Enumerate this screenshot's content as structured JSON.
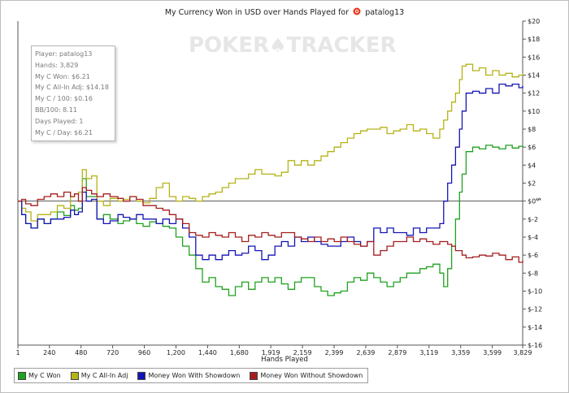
{
  "player_name": "patalog13",
  "info_box": {
    "lines": [
      "Player: patalog13",
      "Hands: 3,829",
      "My C Won: $6.21",
      "My C All-In Adj: $14.18",
      "My C / 100: $0.16",
      "BB/100: 8.11",
      "Days Played: 1",
      "My C / Day: $6.21"
    ]
  },
  "watermark": {
    "left": "POKER",
    "right": "TRACKER"
  },
  "chart_data": {
    "type": "line",
    "title": "My Currency Won in USD over Hands Played for",
    "xlabel": "Hands Played",
    "ylabel": "$",
    "xlim": [
      1,
      3829
    ],
    "ylim": [
      -16,
      20
    ],
    "x_ticks": [
      1,
      240,
      480,
      720,
      960,
      1200,
      1440,
      1680,
      1919,
      2159,
      2399,
      2639,
      2879,
      3119,
      3359,
      3599,
      3829
    ],
    "x_tick_labels": [
      "1",
      "240",
      "480",
      "720",
      "960",
      "1,200",
      "1,440",
      "1,680",
      "1,919",
      "2,159",
      "2,399",
      "2,639",
      "2,879",
      "3,119",
      "3,359",
      "3,599",
      "3,829"
    ],
    "y_ticks": [
      -16,
      -14,
      -12,
      -10,
      -8,
      -6,
      -4,
      -2,
      0,
      2,
      4,
      6,
      8,
      10,
      12,
      14,
      16,
      18,
      20
    ],
    "y_tick_labels": [
      "$-16",
      "$-14",
      "$-12",
      "$-10",
      "$-8",
      "$-6",
      "$-4",
      "$-2",
      "$0",
      "$2",
      "$4",
      "$6",
      "$8",
      "$10",
      "$12",
      "$14",
      "$16",
      "$18",
      "$20"
    ],
    "grid": false,
    "zero_line": true,
    "legend_position": "bottom-left",
    "series": [
      {
        "name": "My C Won",
        "color": "#1fa21f",
        "x": [
          1,
          30,
          60,
          100,
          150,
          200,
          250,
          300,
          350,
          400,
          430,
          460,
          490,
          520,
          560,
          600,
          650,
          700,
          760,
          800,
          850,
          900,
          950,
          1000,
          1050,
          1100,
          1150,
          1200,
          1250,
          1300,
          1350,
          1400,
          1450,
          1500,
          1550,
          1600,
          1650,
          1700,
          1750,
          1800,
          1850,
          1900,
          1950,
          2000,
          2050,
          2100,
          2150,
          2200,
          2250,
          2300,
          2350,
          2400,
          2450,
          2500,
          2550,
          2600,
          2650,
          2700,
          2750,
          2800,
          2850,
          2900,
          2950,
          3000,
          3050,
          3100,
          3150,
          3200,
          3230,
          3260,
          3290,
          3320,
          3350,
          3370,
          3400,
          3450,
          3500,
          3550,
          3600,
          3650,
          3700,
          3750,
          3800,
          3829
        ],
        "y": [
          0.0,
          -1.5,
          -2.5,
          -3.0,
          -2.0,
          -2.5,
          -2.0,
          -1.2,
          -1.6,
          -0.5,
          -1.0,
          -0.8,
          2.5,
          0.5,
          0.5,
          -2.0,
          -1.5,
          -2.0,
          -2.5,
          -2.2,
          -2.0,
          -2.5,
          -2.8,
          -2.3,
          -2.5,
          -2.8,
          -3.0,
          -4.0,
          -5.0,
          -6.0,
          -7.5,
          -9.0,
          -8.5,
          -9.5,
          -9.8,
          -10.5,
          -9.5,
          -9.0,
          -9.8,
          -9.0,
          -8.5,
          -9.0,
          -8.5,
          -9.2,
          -9.8,
          -9.0,
          -8.5,
          -8.5,
          -9.5,
          -10.0,
          -10.5,
          -10.2,
          -10.0,
          -9.0,
          -8.5,
          -8.8,
          -8.0,
          -8.5,
          -9.0,
          -9.5,
          -9.0,
          -8.5,
          -8.0,
          -8.0,
          -7.5,
          -7.3,
          -7.0,
          -8.0,
          -9.5,
          -7.5,
          -5.0,
          -2.0,
          1.0,
          3.0,
          5.5,
          6.0,
          5.8,
          6.2,
          6.0,
          5.8,
          6.2,
          5.9,
          6.1,
          6.2
        ]
      },
      {
        "name": "My C All-In Adj",
        "color": "#b5b216",
        "x": [
          1,
          30,
          60,
          100,
          150,
          200,
          250,
          300,
          350,
          400,
          430,
          460,
          490,
          520,
          560,
          600,
          650,
          700,
          760,
          800,
          850,
          900,
          950,
          1000,
          1050,
          1100,
          1150,
          1200,
          1250,
          1300,
          1350,
          1400,
          1450,
          1500,
          1550,
          1600,
          1650,
          1700,
          1750,
          1800,
          1850,
          1900,
          1950,
          2000,
          2050,
          2100,
          2150,
          2200,
          2250,
          2300,
          2350,
          2400,
          2450,
          2500,
          2550,
          2600,
          2650,
          2700,
          2750,
          2800,
          2850,
          2900,
          2950,
          3000,
          3050,
          3100,
          3150,
          3200,
          3230,
          3260,
          3290,
          3320,
          3350,
          3370,
          3400,
          3450,
          3500,
          3550,
          3600,
          3650,
          3700,
          3750,
          3800,
          3829
        ],
        "y": [
          0.0,
          -0.8,
          -1.2,
          -2.2,
          -1.5,
          -1.5,
          -1.2,
          -0.5,
          -0.8,
          0.5,
          0.8,
          1.0,
          3.5,
          2.5,
          2.8,
          0.0,
          -0.5,
          0.3,
          0.0,
          0.2,
          0.5,
          0.0,
          -0.2,
          0.3,
          1.5,
          2.0,
          0.5,
          0.0,
          0.5,
          0.3,
          0.0,
          0.5,
          0.8,
          1.0,
          1.5,
          2.0,
          2.5,
          2.5,
          3.0,
          3.5,
          3.0,
          3.0,
          2.8,
          3.2,
          4.5,
          4.0,
          4.5,
          4.0,
          4.5,
          5.0,
          5.5,
          6.0,
          6.5,
          7.0,
          7.5,
          7.8,
          8.0,
          8.0,
          8.2,
          7.5,
          7.8,
          8.0,
          8.5,
          7.8,
          8.0,
          7.5,
          7.0,
          8.0,
          9.0,
          10.0,
          11.0,
          12.0,
          13.5,
          15.0,
          15.2,
          14.5,
          14.8,
          14.0,
          14.5,
          14.0,
          14.2,
          13.8,
          14.0,
          14.18
        ]
      },
      {
        "name": "Money Won With Showdown",
        "color": "#1515b5",
        "x": [
          1,
          30,
          60,
          100,
          150,
          200,
          250,
          300,
          350,
          400,
          430,
          460,
          490,
          520,
          560,
          600,
          650,
          700,
          760,
          800,
          850,
          900,
          950,
          1000,
          1050,
          1100,
          1150,
          1200,
          1250,
          1300,
          1350,
          1400,
          1450,
          1500,
          1550,
          1600,
          1650,
          1700,
          1750,
          1800,
          1850,
          1900,
          1950,
          2000,
          2050,
          2100,
          2150,
          2200,
          2250,
          2300,
          2350,
          2400,
          2450,
          2500,
          2550,
          2600,
          2650,
          2700,
          2750,
          2800,
          2850,
          2900,
          2950,
          3000,
          3050,
          3100,
          3150,
          3200,
          3230,
          3260,
          3290,
          3320,
          3350,
          3370,
          3400,
          3450,
          3500,
          3550,
          3600,
          3650,
          3700,
          3750,
          3800,
          3829
        ],
        "y": [
          0.0,
          -1.5,
          -2.5,
          -3.0,
          -2.0,
          -2.5,
          -2.0,
          -2.0,
          -1.8,
          -1.0,
          -1.5,
          -1.2,
          1.0,
          0.0,
          0.2,
          -2.0,
          -2.5,
          -2.2,
          -1.5,
          -1.8,
          -2.0,
          -1.5,
          -2.0,
          -2.0,
          -2.5,
          -2.0,
          -2.5,
          -2.0,
          -3.0,
          -4.0,
          -6.0,
          -6.5,
          -6.0,
          -6.5,
          -6.0,
          -5.5,
          -6.0,
          -5.8,
          -5.0,
          -5.5,
          -6.5,
          -6.0,
          -5.0,
          -4.5,
          -5.0,
          -4.0,
          -4.5,
          -4.0,
          -4.5,
          -4.8,
          -5.0,
          -5.0,
          -4.5,
          -4.0,
          -4.5,
          -5.0,
          -4.5,
          -3.0,
          -3.5,
          -3.0,
          -3.5,
          -3.5,
          -3.8,
          -3.0,
          -3.5,
          -3.0,
          -3.0,
          -2.5,
          0.0,
          2.0,
          4.0,
          6.0,
          8.0,
          10.0,
          12.0,
          12.2,
          12.0,
          12.5,
          12.0,
          13.0,
          12.8,
          13.0,
          12.6,
          12.8
        ]
      },
      {
        "name": "Money Won Without Showdown",
        "color": "#a51d1d",
        "x": [
          1,
          30,
          60,
          100,
          150,
          200,
          250,
          300,
          350,
          400,
          430,
          460,
          490,
          520,
          560,
          600,
          650,
          700,
          760,
          800,
          850,
          900,
          950,
          1000,
          1050,
          1100,
          1150,
          1200,
          1250,
          1300,
          1350,
          1400,
          1450,
          1500,
          1550,
          1600,
          1650,
          1700,
          1750,
          1800,
          1850,
          1900,
          1950,
          2000,
          2050,
          2100,
          2150,
          2200,
          2250,
          2300,
          2350,
          2400,
          2450,
          2500,
          2550,
          2600,
          2650,
          2700,
          2750,
          2800,
          2850,
          2900,
          2950,
          3000,
          3050,
          3100,
          3150,
          3200,
          3230,
          3260,
          3290,
          3320,
          3350,
          3370,
          3400,
          3450,
          3500,
          3550,
          3600,
          3650,
          3700,
          3750,
          3800,
          3829
        ],
        "y": [
          0.0,
          0.2,
          -0.3,
          -0.5,
          0.2,
          0.5,
          0.8,
          0.5,
          1.0,
          0.5,
          0.8,
          0.0,
          1.5,
          1.2,
          0.8,
          0.5,
          0.8,
          0.5,
          0.3,
          0.0,
          0.5,
          0.2,
          -0.5,
          -0.5,
          -0.8,
          -1.0,
          -1.5,
          -2.0,
          -2.5,
          -3.5,
          -3.8,
          -4.0,
          -3.5,
          -3.8,
          -4.0,
          -3.5,
          -4.0,
          -4.5,
          -3.8,
          -4.0,
          -3.5,
          -3.8,
          -4.0,
          -3.5,
          -3.5,
          -4.0,
          -4.2,
          -4.5,
          -4.0,
          -4.5,
          -4.2,
          -4.5,
          -4.0,
          -4.5,
          -4.8,
          -5.0,
          -4.5,
          -6.0,
          -5.5,
          -5.0,
          -4.5,
          -4.5,
          -4.0,
          -4.5,
          -4.2,
          -4.5,
          -4.8,
          -4.5,
          -4.5,
          -4.8,
          -5.0,
          -5.5,
          -5.5,
          -6.0,
          -6.3,
          -6.2,
          -6.0,
          -6.1,
          -5.8,
          -6.0,
          -6.5,
          -6.2,
          -6.8,
          -6.6
        ]
      }
    ]
  }
}
